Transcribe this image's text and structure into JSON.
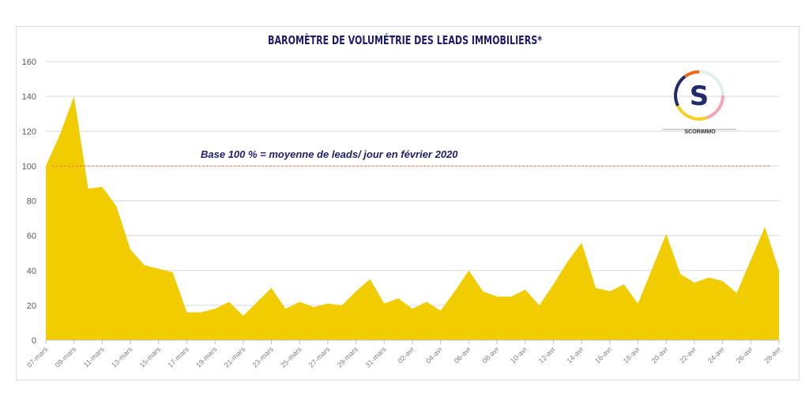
{
  "chart_data": {
    "type": "area",
    "title": "BAROMÈTRE DE VOLUMÉTRIE DES LEADS IMMOBILIERS*",
    "xlabel": "",
    "ylabel": "",
    "ylim": [
      0,
      160
    ],
    "yticks": [
      "0",
      "20",
      "40",
      "60",
      "80",
      "100",
      "120",
      "140",
      "160"
    ],
    "grid": true,
    "x": [
      "07-mars",
      "08-mars",
      "09-mars",
      "10-mars",
      "11-mars",
      "12-mars",
      "13-mars",
      "14-mars",
      "15-mars",
      "16-mars",
      "17-mars",
      "18-mars",
      "19-mars",
      "20-mars",
      "21-mars",
      "22-mars",
      "23-mars",
      "24-mars",
      "25-mars",
      "26-mars",
      "27-mars",
      "28-mars",
      "29-mars",
      "30-mars",
      "31-mars",
      "01-avr",
      "02-avr",
      "03-avr",
      "04-avr",
      "05-avr",
      "06-avr",
      "07-avr",
      "08-avr",
      "09-avr",
      "10-avr",
      "11-avr",
      "12-avr",
      "13-avr",
      "14-avr",
      "15-avr",
      "16-avr",
      "17-avr",
      "18-avr",
      "19-avr",
      "20-avr",
      "21-avr",
      "22-avr",
      "23-avr",
      "24-avr",
      "25-avr",
      "26-avr",
      "27-avr",
      "28-avr"
    ],
    "xtick_labels": [
      "07-mars",
      "09-mars",
      "11-mars",
      "13-mars",
      "15-mars",
      "17-mars",
      "19-mars",
      "21-mars",
      "23-mars",
      "25-mars",
      "27-mars",
      "29-mars",
      "31-mars",
      "02-avr",
      "04-avr",
      "06-avr",
      "08-avr",
      "10-avr",
      "12-avr",
      "14-avr",
      "16-avr",
      "18-avr",
      "20-avr",
      "22-avr",
      "24-avr",
      "26-avr",
      "28-avr"
    ],
    "values": [
      100,
      118,
      140,
      87,
      88,
      77,
      52,
      43,
      41,
      39,
      16,
      16,
      18,
      22,
      14,
      22,
      30,
      18,
      22,
      19,
      21,
      20,
      28,
      35,
      21,
      24,
      18,
      22,
      17,
      28,
      40,
      28,
      25,
      25,
      29,
      20,
      32,
      45,
      56,
      30,
      28,
      32,
      21,
      41,
      61,
      38,
      33,
      36,
      34,
      27,
      46,
      65,
      40
    ],
    "reference_line": {
      "value": 100,
      "label": "Base 100 % = moyenne de leads/ jour en février 2020",
      "color": "#f4734a"
    },
    "colors": {
      "area": "#f0cc00",
      "title": "#1f1d6e",
      "grid": "#d9d9d9"
    }
  },
  "logo": {
    "text": "SCORIMMO",
    "letter": "S"
  }
}
